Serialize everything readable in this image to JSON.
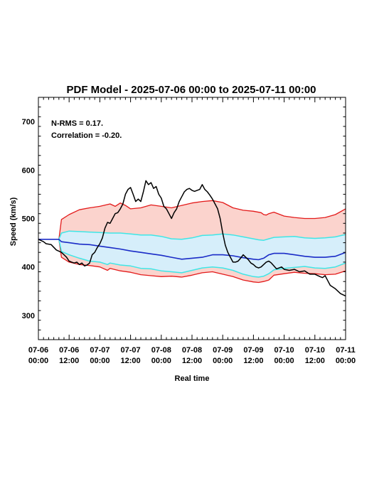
{
  "chart_data": {
    "type": "line",
    "title": "PDF Model - 2025-07-06 00:00 to 2025-07-11 00:00",
    "xlabel": "Real time",
    "ylabel": "Speed (km/s)",
    "xlim": [
      0,
      120
    ],
    "ylim": [
      250,
      750
    ],
    "x_unit": "hours since 2025-07-06 00:00",
    "annotations": [
      "N-RMS = 0.17.",
      "Correlation = -0.20."
    ],
    "x_ticks": [
      {
        "x": 0,
        "line1": "07-06",
        "line2": "00:00"
      },
      {
        "x": 12,
        "line1": "07-06",
        "line2": "12:00"
      },
      {
        "x": 24,
        "line1": "07-07",
        "line2": "00:00"
      },
      {
        "x": 36,
        "line1": "07-07",
        "line2": "12:00"
      },
      {
        "x": 48,
        "line1": "07-08",
        "line2": "00:00"
      },
      {
        "x": 60,
        "line1": "07-08",
        "line2": "12:00"
      },
      {
        "x": 72,
        "line1": "07-09",
        "line2": "00:00"
      },
      {
        "x": 84,
        "line1": "07-09",
        "line2": "12:00"
      },
      {
        "x": 96,
        "line1": "07-10",
        "line2": "00:00"
      },
      {
        "x": 108,
        "line1": "07-10",
        "line2": "12:00"
      },
      {
        "x": 120,
        "line1": "07-11",
        "line2": "00:00"
      }
    ],
    "y_ticks": [
      300,
      400,
      500,
      600,
      700
    ],
    "colors": {
      "observed": "#000000",
      "median": "#1a2bc7",
      "inner_band": "#3ee6e6",
      "outer_band": "#e31a1a",
      "inner_fill": "#d6eefa",
      "outer_fill": "#fbd3cd"
    },
    "series": [
      {
        "key": "upper_outer",
        "points": [
          [
            0,
            457
          ],
          [
            8,
            457
          ],
          [
            9,
            498
          ],
          [
            12,
            508
          ],
          [
            16,
            518
          ],
          [
            20,
            522
          ],
          [
            24,
            525
          ],
          [
            28,
            530
          ],
          [
            30,
            525
          ],
          [
            32,
            532
          ],
          [
            34,
            527
          ],
          [
            36,
            520
          ],
          [
            40,
            522
          ],
          [
            44,
            528
          ],
          [
            48,
            525
          ],
          [
            52,
            522
          ],
          [
            56,
            527
          ],
          [
            60,
            532
          ],
          [
            64,
            535
          ],
          [
            68,
            537
          ],
          [
            72,
            533
          ],
          [
            76,
            522
          ],
          [
            80,
            517
          ],
          [
            84,
            515
          ],
          [
            87,
            512
          ],
          [
            88,
            508
          ],
          [
            89,
            507
          ],
          [
            90,
            510
          ],
          [
            92,
            513
          ],
          [
            96,
            505
          ],
          [
            100,
            502
          ],
          [
            104,
            500
          ],
          [
            108,
            500
          ],
          [
            112,
            502
          ],
          [
            116,
            508
          ],
          [
            120,
            520
          ]
        ]
      },
      {
        "key": "upper_inner",
        "points": [
          [
            0,
            457
          ],
          [
            8,
            457
          ],
          [
            9,
            470
          ],
          [
            12,
            474
          ],
          [
            16,
            473
          ],
          [
            20,
            472
          ],
          [
            24,
            471
          ],
          [
            28,
            470
          ],
          [
            32,
            470
          ],
          [
            36,
            468
          ],
          [
            40,
            466
          ],
          [
            44,
            466
          ],
          [
            48,
            463
          ],
          [
            52,
            458
          ],
          [
            56,
            457
          ],
          [
            60,
            460
          ],
          [
            64,
            465
          ],
          [
            68,
            466
          ],
          [
            72,
            468
          ],
          [
            76,
            466
          ],
          [
            80,
            462
          ],
          [
            84,
            458
          ],
          [
            86,
            456
          ],
          [
            88,
            455
          ],
          [
            90,
            458
          ],
          [
            92,
            461
          ],
          [
            96,
            462
          ],
          [
            100,
            463
          ],
          [
            104,
            460
          ],
          [
            108,
            459
          ],
          [
            112,
            460
          ],
          [
            116,
            462
          ],
          [
            120,
            467
          ]
        ]
      },
      {
        "key": "median",
        "points": [
          [
            0,
            457
          ],
          [
            8,
            457
          ],
          [
            9,
            452
          ],
          [
            12,
            450
          ],
          [
            16,
            447
          ],
          [
            20,
            446
          ],
          [
            24,
            443
          ],
          [
            28,
            440
          ],
          [
            32,
            437
          ],
          [
            36,
            433
          ],
          [
            40,
            430
          ],
          [
            44,
            427
          ],
          [
            48,
            424
          ],
          [
            52,
            420
          ],
          [
            56,
            416
          ],
          [
            60,
            418
          ],
          [
            64,
            420
          ],
          [
            68,
            425
          ],
          [
            72,
            425
          ],
          [
            76,
            423
          ],
          [
            80,
            419
          ],
          [
            84,
            416
          ],
          [
            86,
            415
          ],
          [
            88,
            418
          ],
          [
            90,
            425
          ],
          [
            92,
            428
          ],
          [
            96,
            428
          ],
          [
            100,
            425
          ],
          [
            104,
            422
          ],
          [
            108,
            420
          ],
          [
            112,
            420
          ],
          [
            116,
            422
          ],
          [
            120,
            430
          ]
        ]
      },
      {
        "key": "lower_inner",
        "points": [
          [
            0,
            457
          ],
          [
            8,
            457
          ],
          [
            9,
            432
          ],
          [
            12,
            425
          ],
          [
            16,
            418
          ],
          [
            20,
            412
          ],
          [
            24,
            410
          ],
          [
            27,
            405
          ],
          [
            28,
            408
          ],
          [
            32,
            404
          ],
          [
            36,
            402
          ],
          [
            40,
            397
          ],
          [
            44,
            396
          ],
          [
            46,
            394
          ],
          [
            48,
            392
          ],
          [
            52,
            390
          ],
          [
            56,
            388
          ],
          [
            60,
            393
          ],
          [
            64,
            398
          ],
          [
            68,
            400
          ],
          [
            72,
            398
          ],
          [
            76,
            393
          ],
          [
            80,
            385
          ],
          [
            84,
            380
          ],
          [
            86,
            379
          ],
          [
            88,
            381
          ],
          [
            90,
            386
          ],
          [
            92,
            394
          ],
          [
            96,
            397
          ],
          [
            100,
            399
          ],
          [
            104,
            401
          ],
          [
            108,
            398
          ],
          [
            112,
            397
          ],
          [
            116,
            400
          ],
          [
            120,
            408
          ]
        ]
      },
      {
        "key": "lower_outer",
        "points": [
          [
            0,
            457
          ],
          [
            8,
            457
          ],
          [
            9,
            420
          ],
          [
            12,
            410
          ],
          [
            16,
            405
          ],
          [
            20,
            403
          ],
          [
            24,
            400
          ],
          [
            27,
            393
          ],
          [
            28,
            397
          ],
          [
            32,
            392
          ],
          [
            36,
            389
          ],
          [
            40,
            384
          ],
          [
            44,
            382
          ],
          [
            48,
            380
          ],
          [
            52,
            381
          ],
          [
            56,
            379
          ],
          [
            60,
            383
          ],
          [
            64,
            388
          ],
          [
            68,
            390
          ],
          [
            72,
            385
          ],
          [
            76,
            380
          ],
          [
            80,
            373
          ],
          [
            84,
            369
          ],
          [
            86,
            368
          ],
          [
            88,
            370
          ],
          [
            90,
            373
          ],
          [
            92,
            383
          ],
          [
            96,
            386
          ],
          [
            100,
            389
          ],
          [
            104,
            387
          ],
          [
            108,
            386
          ],
          [
            112,
            384
          ],
          [
            116,
            385
          ],
          [
            120,
            392
          ]
        ]
      },
      {
        "key": "observed",
        "points": [
          [
            0,
            457
          ],
          [
            2,
            452
          ],
          [
            3,
            448
          ],
          [
            5,
            446
          ],
          [
            7,
            435
          ],
          [
            9,
            430
          ],
          [
            10,
            425
          ],
          [
            11,
            420
          ],
          [
            12,
            412
          ],
          [
            13,
            410
          ],
          [
            14,
            408
          ],
          [
            15,
            410
          ],
          [
            16,
            405
          ],
          [
            17,
            408
          ],
          [
            18,
            402
          ],
          [
            19,
            404
          ],
          [
            20,
            408
          ],
          [
            21,
            425
          ],
          [
            22,
            430
          ],
          [
            23,
            440
          ],
          [
            24,
            448
          ],
          [
            25,
            460
          ],
          [
            26,
            480
          ],
          [
            27,
            492
          ],
          [
            28,
            490
          ],
          [
            29,
            500
          ],
          [
            30,
            510
          ],
          [
            31,
            512
          ],
          [
            32,
            520
          ],
          [
            33,
            530
          ],
          [
            34,
            550
          ],
          [
            35,
            560
          ],
          [
            36,
            564
          ],
          [
            37,
            550
          ],
          [
            38,
            535
          ],
          [
            39,
            540
          ],
          [
            40,
            535
          ],
          [
            41,
            555
          ],
          [
            42,
            578
          ],
          [
            43,
            570
          ],
          [
            44,
            574
          ],
          [
            45,
            562
          ],
          [
            46,
            566
          ],
          [
            47,
            550
          ],
          [
            48,
            542
          ],
          [
            49,
            525
          ],
          [
            50,
            520
          ],
          [
            51,
            510
          ],
          [
            52,
            500
          ],
          [
            53,
            512
          ],
          [
            54,
            520
          ],
          [
            55,
            535
          ],
          [
            56,
            545
          ],
          [
            57,
            555
          ],
          [
            58,
            560
          ],
          [
            59,
            562
          ],
          [
            60,
            558
          ],
          [
            61,
            556
          ],
          [
            62,
            558
          ],
          [
            63,
            560
          ],
          [
            64,
            570
          ],
          [
            65,
            560
          ],
          [
            66,
            555
          ],
          [
            67,
            548
          ],
          [
            68,
            540
          ],
          [
            69,
            530
          ],
          [
            70,
            520
          ],
          [
            71,
            500
          ],
          [
            72,
            470
          ],
          [
            73,
            445
          ],
          [
            74,
            430
          ],
          [
            75,
            420
          ],
          [
            76,
            410
          ],
          [
            77,
            410
          ],
          [
            78,
            412
          ],
          [
            79,
            418
          ],
          [
            80,
            425
          ],
          [
            81,
            420
          ],
          [
            82,
            415
          ],
          [
            83,
            408
          ],
          [
            84,
            405
          ],
          [
            85,
            400
          ],
          [
            86,
            398
          ],
          [
            87,
            400
          ],
          [
            88,
            405
          ],
          [
            89,
            410
          ],
          [
            90,
            412
          ],
          [
            91,
            408
          ],
          [
            92,
            402
          ],
          [
            93,
            396
          ],
          [
            94,
            398
          ],
          [
            95,
            400
          ],
          [
            96,
            395
          ],
          [
            98,
            393
          ],
          [
            100,
            395
          ],
          [
            102,
            390
          ],
          [
            104,
            392
          ],
          [
            106,
            385
          ],
          [
            108,
            385
          ],
          [
            110,
            380
          ],
          [
            111,
            378
          ],
          [
            112,
            382
          ],
          [
            113,
            372
          ],
          [
            114,
            362
          ],
          [
            116,
            355
          ],
          [
            118,
            345
          ],
          [
            120,
            340
          ]
        ]
      }
    ]
  }
}
